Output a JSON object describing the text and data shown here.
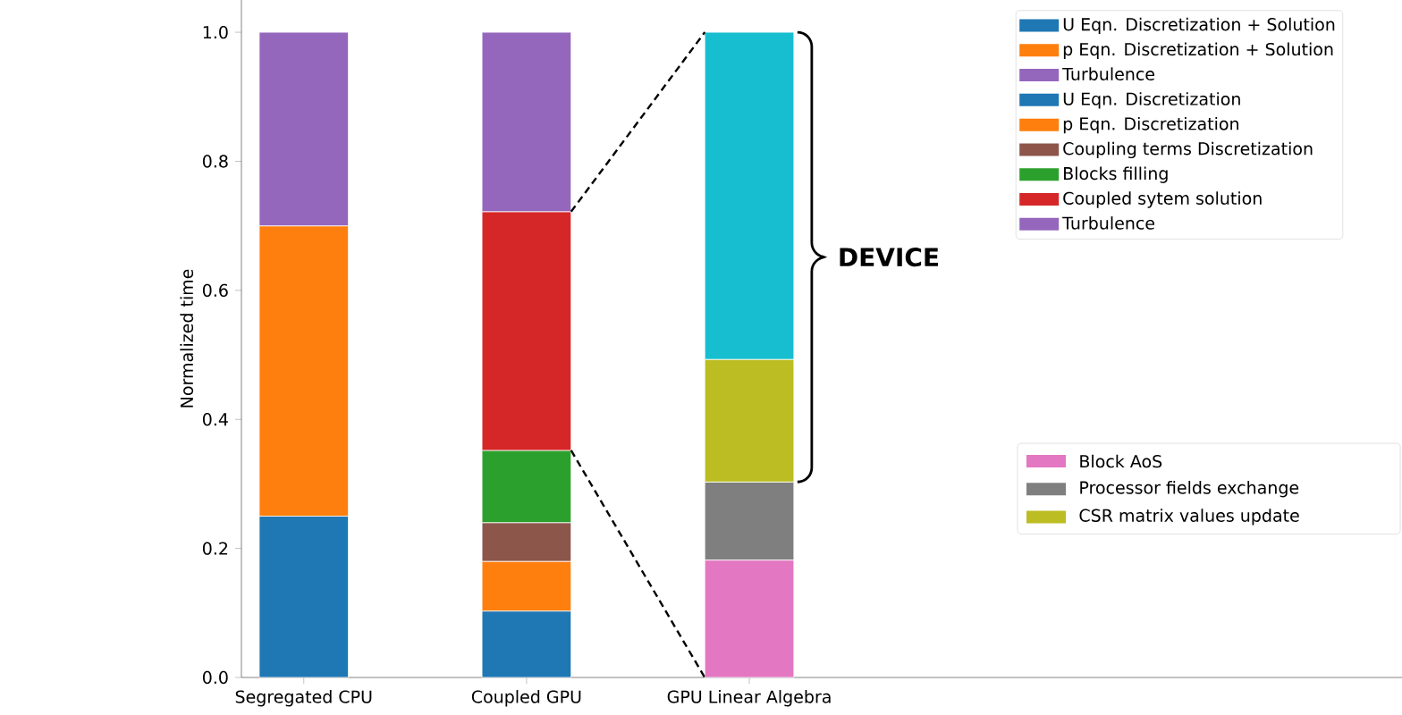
{
  "chart_data": {
    "type": "bar",
    "stacked": true,
    "ylabel": "Normalized time",
    "categories": [
      "Segregated CPU",
      "Coupled GPU",
      "GPU Linear Algebra"
    ],
    "series": [
      {
        "name": "U Eqn. Discretization + Solution",
        "color": "#1f77b4",
        "values": [
          0.25,
          null,
          null
        ]
      },
      {
        "name": "p Eqn. Discretization + Solution",
        "color": "#ff7f0e",
        "values": [
          0.45,
          null,
          null
        ]
      },
      {
        "name": "Turbulence",
        "color": "#9467bd",
        "values": [
          0.3,
          null,
          null
        ]
      },
      {
        "name": "U Eqn. Discretization",
        "color": "#1f77b4",
        "values": [
          null,
          0.103,
          null
        ]
      },
      {
        "name": "p Eqn. Discretization",
        "color": "#ff7f0e",
        "values": [
          null,
          0.077,
          null
        ]
      },
      {
        "name": "Coupling terms Discretization",
        "color": "#8c564b",
        "values": [
          null,
          0.06,
          null
        ]
      },
      {
        "name": "Blocks filling",
        "color": "#2ca02c",
        "values": [
          null,
          0.112,
          null
        ]
      },
      {
        "name": "Coupled sytem solution",
        "color": "#d62728",
        "values": [
          null,
          0.37,
          null
        ]
      },
      {
        "name": "Turbulence",
        "color": "#9467bd",
        "values": [
          null,
          0.278,
          null
        ]
      },
      {
        "name": "Block AoS",
        "color": "#e377c2",
        "values": [
          null,
          null,
          0.182
        ]
      },
      {
        "name": "Processor fields exchange",
        "color": "#7f7f7f",
        "values": [
          null,
          null,
          0.121
        ]
      },
      {
        "name": "CSR matrix values update",
        "color": "#bcbd22",
        "values": [
          null,
          null,
          0.19
        ]
      },
      {
        "color": "#17becf",
        "values": [
          null,
          null,
          0.507
        ]
      }
    ],
    "ylim": [
      0,
      1.05
    ],
    "yticks": [
      {
        "value": 0,
        "label": "0.0"
      },
      {
        "value": 0.2,
        "label": "0.2"
      },
      {
        "value": 0.4,
        "label": "0.4"
      },
      {
        "value": 0.6,
        "label": "0.6"
      },
      {
        "value": 0.8,
        "label": "0.8"
      },
      {
        "value": 1.0,
        "label": "1.0"
      }
    ],
    "legend": "top right",
    "annotations": [
      "DEVICE"
    ]
  }
}
